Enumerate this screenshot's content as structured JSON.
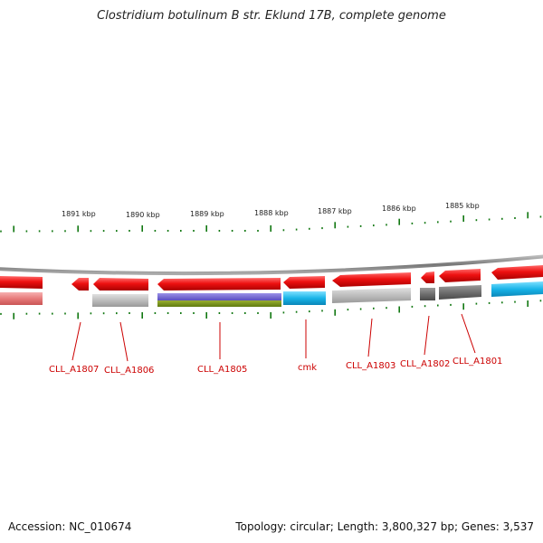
{
  "title": "Clostridium botulinum B str. Eklund 17B, complete genome",
  "footer": {
    "accession": "Accession: NC_010674",
    "summary": "Topology: circular; Length: 3,800,327 bp; Genes: 3,537"
  },
  "colors": {
    "cds": "#ee1111",
    "gene_label": "#cc0000",
    "backbone": "#888888",
    "ticks": "#117711"
  },
  "kbp_labels": [
    "1891 kbp",
    "1890 kbp",
    "1889 kbp",
    "1888 kbp",
    "1887 kbp",
    "1886 kbp",
    "1885 kbp"
  ],
  "genes": [
    {
      "label": "CLL_A1807"
    },
    {
      "label": "CLL_A1806"
    },
    {
      "label": "CLL_A1805"
    },
    {
      "label": "cmk"
    },
    {
      "label": "CLL_A1803"
    },
    {
      "label": "CLL_A1802"
    },
    {
      "label": "CLL_A1801"
    }
  ]
}
